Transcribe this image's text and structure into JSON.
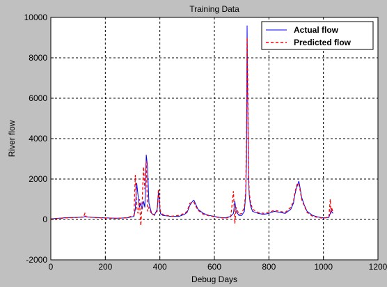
{
  "chart_data": {
    "type": "line",
    "title": "Training Data",
    "xlabel": "Debug Days",
    "ylabel": "River flow",
    "xlim": [
      0,
      1200
    ],
    "ylim": [
      -2000,
      10000
    ],
    "xticks": [
      0,
      200,
      400,
      600,
      800,
      1000,
      1200
    ],
    "yticks": [
      -2000,
      0,
      2000,
      4000,
      6000,
      8000,
      10000
    ],
    "grid": true,
    "legend_position": "top-right",
    "series": [
      {
        "name": "Actual flow",
        "color": "#0000ff",
        "style": "solid",
        "x": [
          0,
          30,
          60,
          90,
          120,
          125,
          130,
          160,
          200,
          240,
          280,
          305,
          310,
          315,
          320,
          325,
          330,
          335,
          340,
          345,
          350,
          355,
          360,
          370,
          380,
          390,
          395,
          398,
          402,
          410,
          440,
          470,
          490,
          500,
          510,
          520,
          525,
          530,
          540,
          560,
          580,
          600,
          620,
          640,
          660,
          670,
          675,
          680,
          690,
          700,
          710,
          715,
          718,
          720,
          722,
          725,
          728,
          732,
          740,
          760,
          780,
          800,
          820,
          840,
          860,
          880,
          890,
          895,
          900,
          905,
          910,
          915,
          920,
          930,
          940,
          960,
          980,
          1000,
          1020,
          1025,
          1028,
          1030,
          1035
        ],
        "values": [
          30,
          60,
          90,
          100,
          110,
          150,
          120,
          100,
          80,
          60,
          80,
          150,
          500,
          1800,
          1200,
          600,
          800,
          500,
          900,
          600,
          3200,
          2600,
          800,
          300,
          200,
          500,
          1400,
          800,
          300,
          200,
          150,
          150,
          250,
          350,
          700,
          900,
          950,
          800,
          500,
          300,
          200,
          150,
          100,
          80,
          150,
          300,
          900,
          400,
          200,
          200,
          400,
          1200,
          3000,
          9600,
          6000,
          2000,
          1200,
          700,
          400,
          300,
          250,
          300,
          400,
          350,
          300,
          500,
          800,
          1200,
          1500,
          1700,
          1900,
          1500,
          1100,
          700,
          400,
          200,
          120,
          80,
          100,
          300,
          500,
          400,
          300
        ]
      },
      {
        "name": "Predicted flow",
        "color": "#ff0000",
        "style": "dashed",
        "x": [
          0,
          30,
          60,
          90,
          120,
          125,
          130,
          160,
          200,
          240,
          280,
          305,
          310,
          315,
          320,
          325,
          330,
          335,
          340,
          345,
          350,
          355,
          360,
          370,
          380,
          390,
          395,
          398,
          402,
          410,
          440,
          470,
          490,
          500,
          510,
          520,
          525,
          530,
          540,
          560,
          580,
          600,
          620,
          640,
          660,
          670,
          675,
          680,
          690,
          700,
          710,
          715,
          718,
          720,
          722,
          725,
          728,
          732,
          740,
          760,
          780,
          800,
          820,
          840,
          860,
          880,
          890,
          895,
          900,
          905,
          910,
          915,
          920,
          930,
          940,
          960,
          980,
          1000,
          1020,
          1025,
          1028,
          1030,
          1035
        ],
        "values": [
          20,
          50,
          80,
          90,
          120,
          300,
          130,
          90,
          70,
          50,
          90,
          200,
          2200,
          600,
          300,
          1000,
          -300,
          800,
          2600,
          1500,
          2900,
          400,
          600,
          250,
          250,
          400,
          1500,
          1000,
          400,
          250,
          150,
          200,
          300,
          400,
          800,
          850,
          850,
          700,
          450,
          250,
          180,
          130,
          90,
          60,
          120,
          1400,
          -200,
          600,
          250,
          300,
          600,
          1400,
          4000,
          9000,
          7300,
          2500,
          1300,
          900,
          500,
          350,
          300,
          350,
          450,
          400,
          350,
          600,
          900,
          1300,
          1600,
          1800,
          1750,
          1400,
          1000,
          650,
          350,
          150,
          100,
          60,
          120,
          1000,
          300,
          600,
          350
        ]
      }
    ]
  }
}
